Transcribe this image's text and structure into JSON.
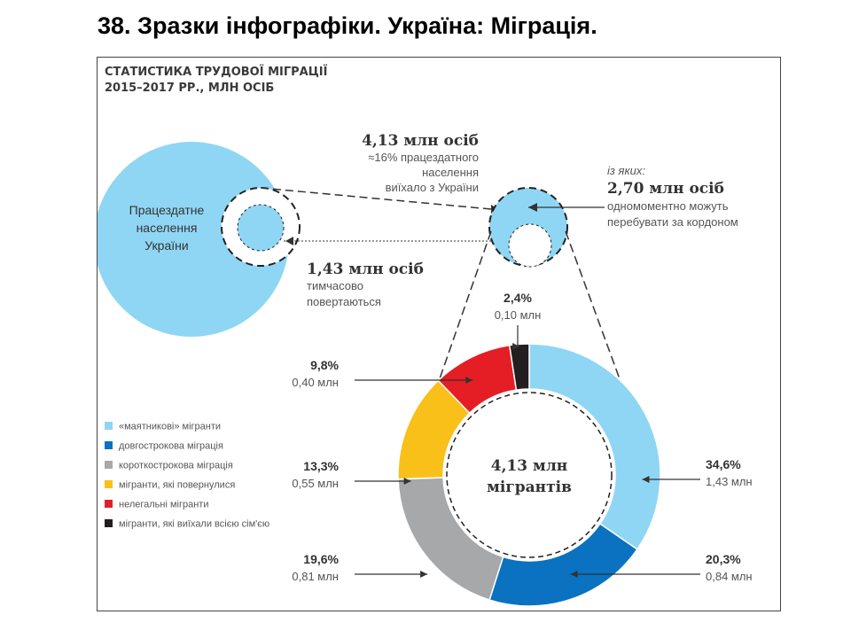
{
  "slide_title": "38. Зразки інфографіки. Україна: Міграція.",
  "heading": {
    "line1": "СТАТИСТИКА ТРУДОВОЇ МІГРАЦІЇ",
    "line2": "2015–2017 РР., МЛН ОСІБ"
  },
  "big_circle": {
    "line1": "Працездатне",
    "line2": "населення",
    "line3": "України"
  },
  "left_callout": {
    "value": "4,13 млн осіб",
    "line1": "≈16% працездатного",
    "line2": "населення",
    "line3": "виїхало з України"
  },
  "return_callout": {
    "value": "1,43 млн осіб",
    "line1": "тимчасово",
    "line2": "повертаються"
  },
  "right_callout": {
    "intro": "із яких:",
    "value": "2,70 млн осіб",
    "line1": "одномоментно можуть",
    "line2": "перебувати за кордоном"
  },
  "colors": {
    "light_blue": "#8fd6f4",
    "dark_blue": "#0a72c0",
    "gray": "#a7a8aa",
    "yellow": "#f9c01a",
    "red": "#e51e25",
    "black": "#231f20"
  },
  "chart_data": {
    "type": "pie",
    "donut": true,
    "center_label": {
      "line1": "4,13 млн",
      "line2": "мігрантів"
    },
    "slices": [
      {
        "name": "«маятникові» мігранти",
        "percent": 34.6,
        "percent_label": "34,6%",
        "value": 1.43,
        "value_label": "1,43 млн",
        "color": "#8fd6f4"
      },
      {
        "name": "довгострокова міграція",
        "percent": 20.3,
        "percent_label": "20,3%",
        "value": 0.84,
        "value_label": "0,84 млн",
        "color": "#0a72c0"
      },
      {
        "name": "короткострокова міграція",
        "percent": 19.6,
        "percent_label": "19,6%",
        "value": 0.81,
        "value_label": "0,81 млн",
        "color": "#a7a8aa"
      },
      {
        "name": "мігранти, які повернулися",
        "percent": 13.3,
        "percent_label": "13,3%",
        "value": 0.55,
        "value_label": "0,55 млн",
        "color": "#f9c01a"
      },
      {
        "name": "нелегальні мігранти",
        "percent": 9.8,
        "percent_label": "9,8%",
        "value": 0.4,
        "value_label": "0,40 млн",
        "color": "#e51e25"
      },
      {
        "name": "мігранти, які виїхали всією сім'єю",
        "percent": 2.4,
        "percent_label": "2,4%",
        "value": 0.1,
        "value_label": "0,10 млн",
        "color": "#231f20"
      }
    ],
    "legend_position": "left"
  }
}
